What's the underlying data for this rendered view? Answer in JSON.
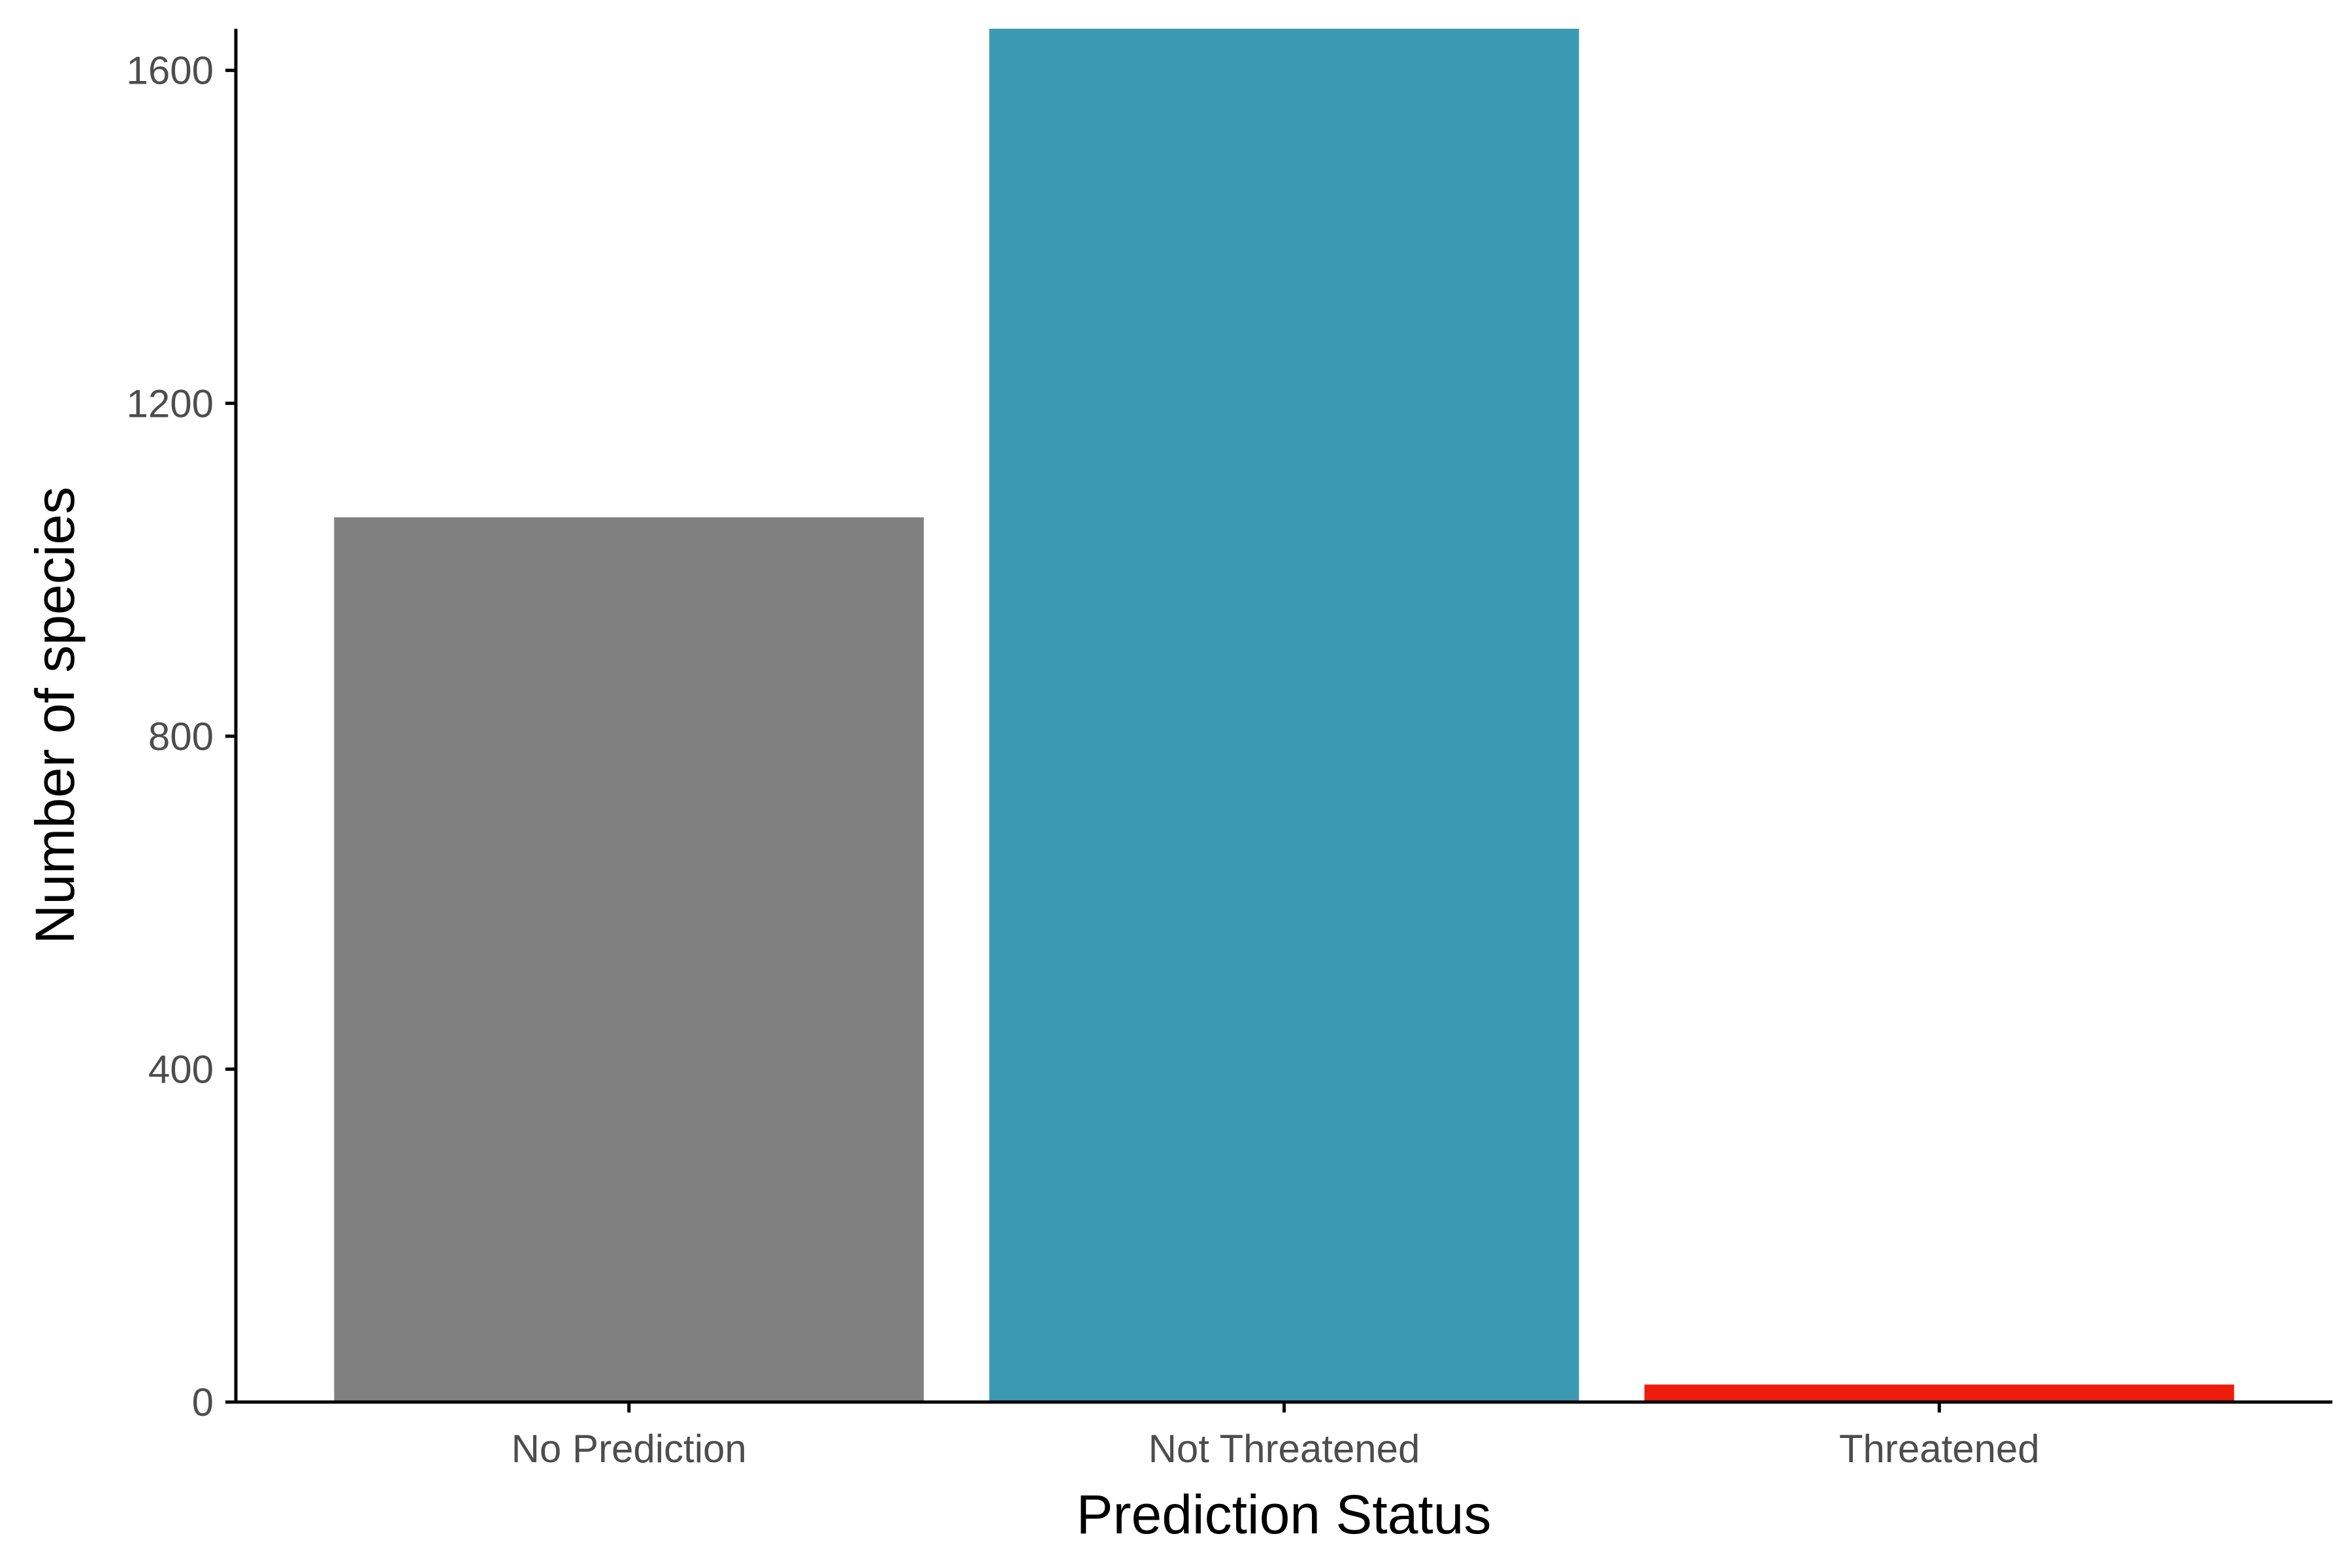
{
  "chart_data": {
    "type": "bar",
    "categories": [
      "No Prediction",
      "Not Threatened",
      "Threatened"
    ],
    "values": [
      1063,
      1650,
      21
    ],
    "colors": [
      "#808080",
      "#3C99B2",
      "#EE1C0A"
    ],
    "xlabel": "Prediction Status",
    "ylabel": "Number of species",
    "ylim": [
      0,
      1650
    ],
    "yticks": [
      0,
      400,
      800,
      1200,
      1600
    ],
    "ytick_labels": [
      "0",
      "400",
      "800",
      "1200",
      "1600"
    ],
    "grid": false,
    "legend": "none"
  }
}
